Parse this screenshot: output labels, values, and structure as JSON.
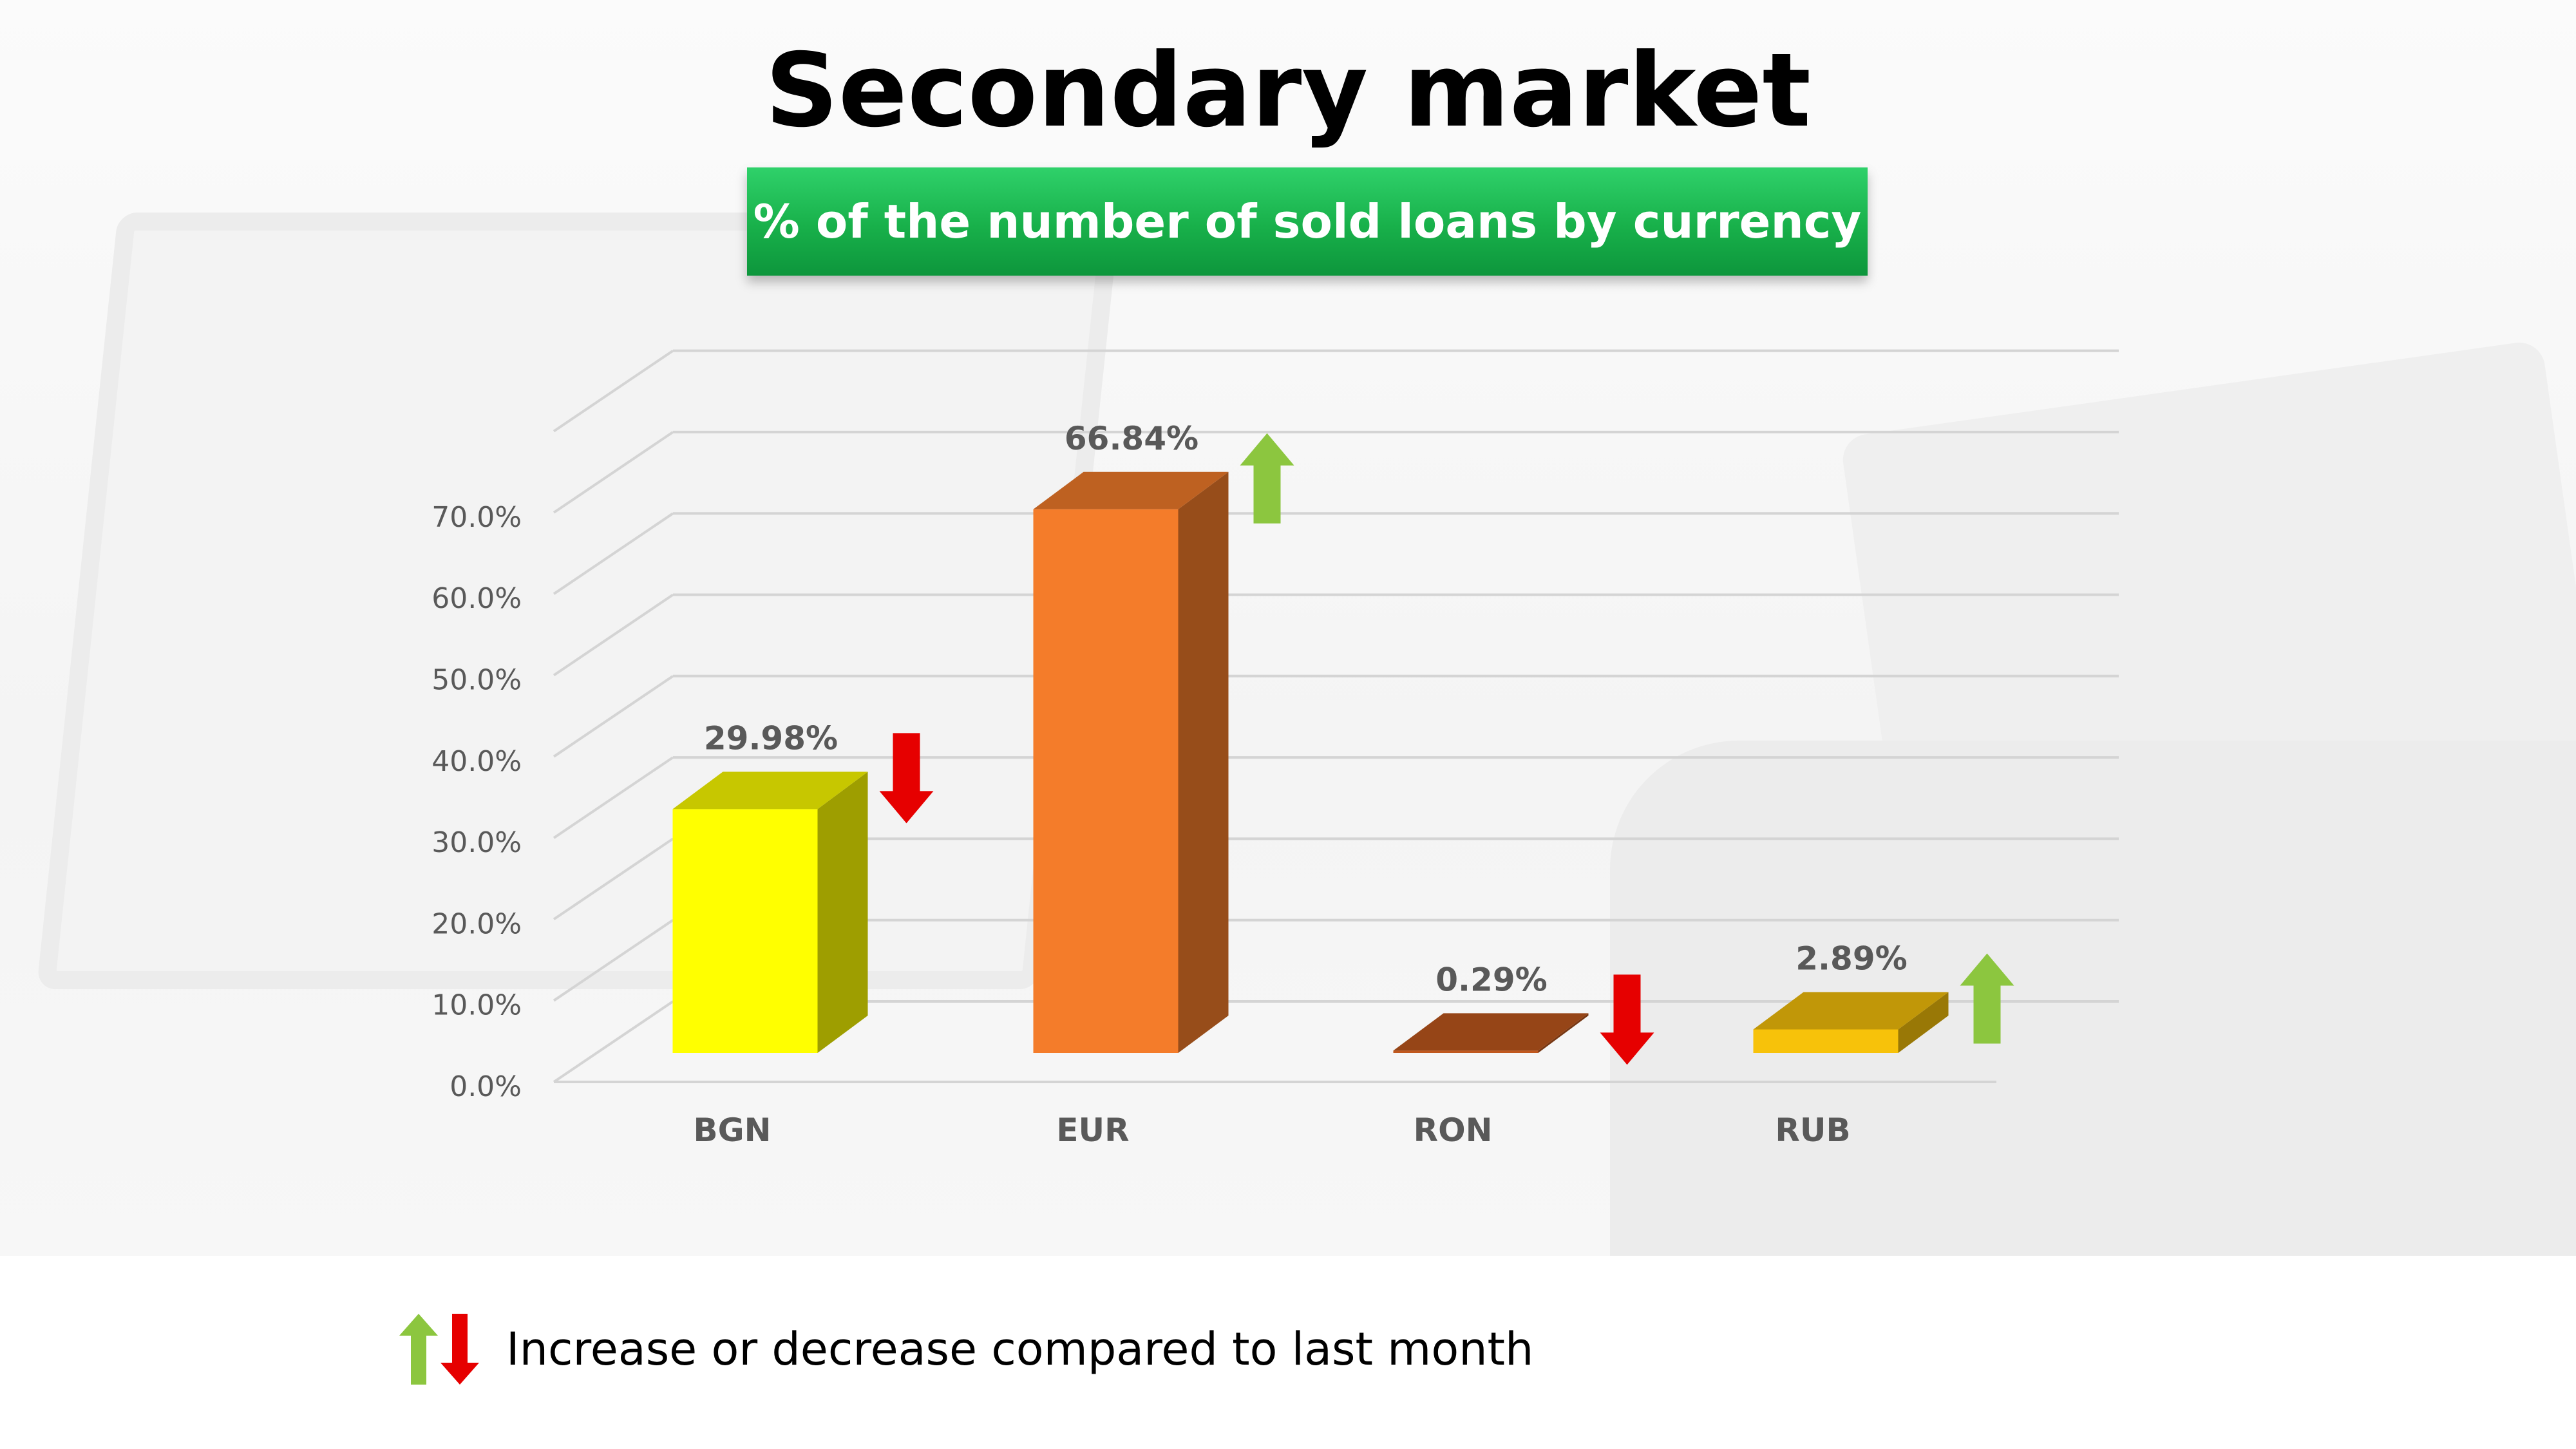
{
  "title": "Secondary market",
  "subtitle": "% of the number of sold loans by currency",
  "legend_text": "Increase or decrease compared to last month",
  "chart_data": {
    "type": "bar",
    "categories": [
      "BGN",
      "EUR",
      "RON",
      "RUB"
    ],
    "values": [
      29.98,
      66.84,
      0.29,
      2.89
    ],
    "value_labels": [
      "29.98%",
      "66.84%",
      "0.29%",
      "2.89%"
    ],
    "trend": [
      "down",
      "up",
      "down",
      "up"
    ],
    "ylim": [
      0,
      70
    ],
    "yticks": [
      "0.0%",
      "10.0%",
      "20.0%",
      "30.0%",
      "40.0%",
      "50.0%",
      "60.0%",
      "70.0%"
    ],
    "grid": true,
    "legend": "bottom-left"
  },
  "colors": {
    "BGN": "#ffff00",
    "EUR": "#f47c2a",
    "RON": "#c0581e",
    "RUB": "#f7c20a",
    "up_arrow": "#8cc63f",
    "down_arrow": "#e60000"
  }
}
